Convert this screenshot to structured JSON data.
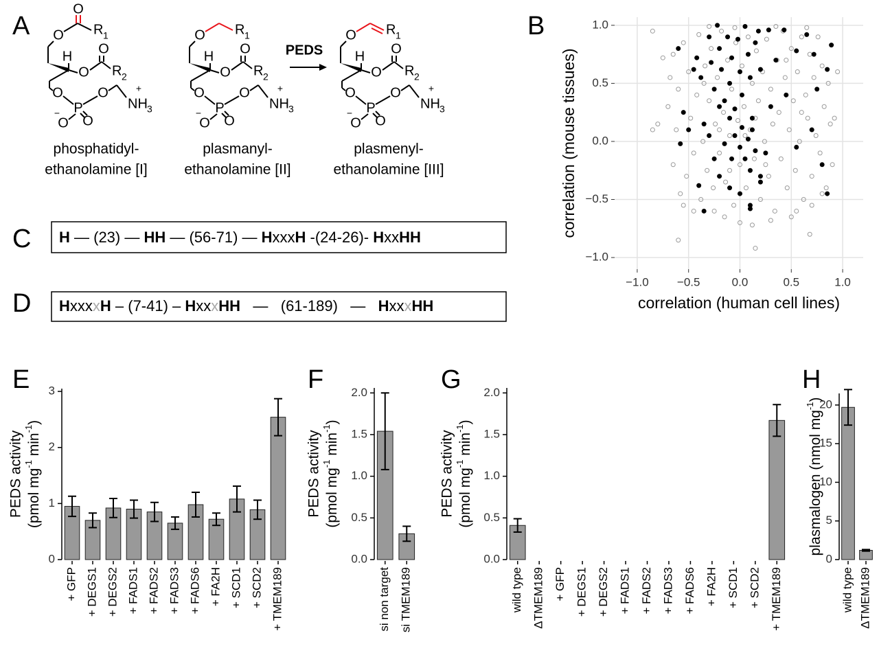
{
  "section_A": {
    "panel": "A",
    "reaction_label": "PEDS",
    "structures": [
      {
        "atoms": [
          "O",
          "O",
          "R",
          "1",
          "H",
          "O",
          "O",
          "R",
          "2",
          "O",
          "P",
          "O",
          "−",
          "O",
          "O",
          "NH",
          "3",
          "+"
        ],
        "caption": [
          "phosphatidyl-",
          "ethanolamine [I]"
        ]
      },
      {
        "atoms": [
          "O",
          "R",
          "1",
          "H",
          "O",
          "O",
          "R",
          "2",
          "O",
          "P",
          "O",
          "−",
          "O",
          "O",
          "NH",
          "3",
          "+"
        ],
        "caption": [
          "plasmanyl-",
          "ethanolamine [II]"
        ]
      },
      {
        "atoms": [
          "O",
          "R",
          "1",
          "H",
          "O",
          "O",
          "R",
          "2",
          "O",
          "P",
          "O",
          "−",
          "O",
          "O",
          "NH",
          "3",
          "+"
        ],
        "caption": [
          "plasmenyl-",
          "ethanolamine [III]"
        ]
      }
    ]
  },
  "section_C": {
    "panel": "C",
    "segments": [
      {
        "text": "H",
        "style": "bold"
      },
      {
        "text": " — (23) — ",
        "style": "normal"
      },
      {
        "text": "HH",
        "style": "bold"
      },
      {
        "text": " — (56-71) — ",
        "style": "normal"
      },
      {
        "text": "H",
        "style": "bold"
      },
      {
        "text": "xxx",
        "style": "normal"
      },
      {
        "text": "H",
        "style": "bold"
      },
      {
        "text": " -(24-26)- ",
        "style": "normal"
      },
      {
        "text": "H",
        "style": "bold"
      },
      {
        "text": "xx",
        "style": "normal"
      },
      {
        "text": "HH",
        "style": "bold"
      }
    ]
  },
  "section_D": {
    "panel": "D",
    "segments": [
      {
        "text": "H",
        "style": "bold"
      },
      {
        "text": "xxx",
        "style": "normal"
      },
      {
        "text": "x",
        "style": "grey"
      },
      {
        "text": "H",
        "style": "bold"
      },
      {
        "text": " – (7-41) – ",
        "style": "normal"
      },
      {
        "text": "H",
        "style": "bold"
      },
      {
        "text": "xx",
        "style": "normal"
      },
      {
        "text": "x",
        "style": "grey"
      },
      {
        "text": "HH",
        "style": "bold"
      },
      {
        "text": "   —   (61-189)   —   ",
        "style": "normal"
      },
      {
        "text": "H",
        "style": "bold"
      },
      {
        "text": "xx",
        "style": "normal"
      },
      {
        "text": "x",
        "style": "grey"
      },
      {
        "text": "HH",
        "style": "bold"
      }
    ]
  },
  "chart_data": [
    {
      "type": "scatter",
      "panel": "B",
      "xlabel": "correlation (human cell lines)",
      "ylabel": "correlation (mouse tissues)",
      "xlim": [
        -1.22,
        1.2
      ],
      "ylim": [
        -1.1,
        1.07
      ],
      "grid": true,
      "xticks": [
        {
          "value": -1,
          "label": "−1.0"
        },
        {
          "value": -0.5,
          "label": "−0.5"
        },
        {
          "value": 0,
          "label": "0.0"
        },
        {
          "value": 0.5,
          "label": "0.5"
        },
        {
          "value": 1,
          "label": "1.0"
        }
      ],
      "yticks": [
        {
          "value": -1,
          "label": "−1.0"
        },
        {
          "value": -0.5,
          "label": "−0.5"
        },
        {
          "value": 0,
          "label": "0.0"
        },
        {
          "value": 0.5,
          "label": "0.5"
        },
        {
          "value": 1,
          "label": "1.0"
        }
      ],
      "series": [
        {
          "color": "#9a9a9a",
          "marker": "open",
          "x": [
            -0.85,
            -0.75,
            -0.7,
            -0.68,
            -0.65,
            -0.62,
            -0.6,
            -0.58,
            -0.55,
            -0.52,
            -0.5,
            -0.48,
            -0.45,
            -0.42,
            -0.4,
            -0.38,
            -0.36,
            -0.34,
            -0.32,
            -0.3,
            -0.28,
            -0.26,
            -0.24,
            -0.22,
            -0.2,
            -0.18,
            -0.16,
            -0.14,
            -0.12,
            -0.1,
            -0.08,
            -0.06,
            -0.04,
            -0.02,
            0.0,
            0.02,
            0.04,
            0.06,
            0.08,
            0.1,
            0.12,
            0.14,
            0.16,
            0.18,
            0.2,
            0.22,
            0.24,
            0.26,
            0.28,
            0.3,
            0.32,
            0.34,
            0.36,
            0.38,
            0.4,
            0.42,
            0.44,
            0.46,
            0.48,
            0.5,
            0.52,
            0.54,
            0.56,
            0.58,
            0.6,
            0.62,
            0.64,
            0.66,
            0.68,
            0.7,
            0.72,
            0.74,
            0.76,
            0.78,
            0.8,
            0.82,
            0.84,
            0.86,
            0.88,
            0.9,
            -0.15,
            0.0,
            0.12,
            -0.25,
            0.3,
            0.55,
            -0.45,
            -0.05,
            0.35,
            -0.3,
            0.65,
            0.5,
            0.7,
            0.8,
            -0.55,
            -0.2,
            0.05,
            -0.1,
            0.15,
            0.25,
            -0.35,
            0.45,
            0.6,
            -0.65,
            -0.8,
            -0.85,
            0.95,
            0.92,
            0.15,
            0.68,
            -0.6
          ],
          "values": [
            0.95,
            0.72,
            0.3,
            0.55,
            -0.2,
            0.1,
            0.45,
            -0.45,
            0.85,
            -0.3,
            0.6,
            0.2,
            -0.1,
            0.4,
            0.92,
            -0.5,
            0.0,
            0.65,
            -0.25,
            0.35,
            0.8,
            -0.4,
            0.15,
            0.55,
            -0.1,
            0.95,
            0.25,
            -0.35,
            0.7,
            0.05,
            0.45,
            -0.55,
            0.85,
            0.18,
            -0.2,
            0.65,
            0.3,
            -0.4,
            0.9,
            0.1,
            0.5,
            -0.15,
            0.78,
            0.35,
            -0.5,
            0.6,
            0.0,
            0.88,
            -0.3,
            0.45,
            0.15,
            -0.6,
            0.7,
            0.25,
            -0.15,
            0.95,
            0.55,
            -0.4,
            0.1,
            0.8,
            0.35,
            -0.25,
            0.6,
            0.0,
            0.9,
            -0.5,
            0.4,
            0.2,
            0.75,
            -0.3,
            0.55,
            0.05,
            0.9,
            -0.1,
            0.65,
            0.3,
            -0.4,
            0.5,
            0.15,
            -0.2,
            -0.65,
            -0.7,
            -0.72,
            -0.6,
            -0.68,
            -0.6,
            -0.6,
            0.98,
            0.99,
            0.99,
            0.98,
            -0.65,
            -0.55,
            -0.45,
            -0.55,
            0.1,
            0.05,
            -0.25,
            0.2,
            -0.2,
            0.5,
            0.7,
            0.25,
            0.75,
            0.15,
            0.1,
            0.6,
            0.2,
            -0.92,
            -0.8,
            -0.85
          ]
        },
        {
          "color": "#000000",
          "marker": "filled",
          "x": [
            -0.45,
            -0.42,
            -0.38,
            -0.3,
            -0.28,
            -0.25,
            -0.22,
            -0.2,
            -0.18,
            -0.15,
            -0.12,
            -0.1,
            -0.08,
            -0.05,
            -0.02,
            0.0,
            0.02,
            0.05,
            0.08,
            0.1,
            0.12,
            0.15,
            0.18,
            0.2,
            0.28,
            0.35,
            0.43,
            0.55,
            0.65,
            0.72,
            0.89,
            0.85,
            0.75,
            -0.6,
            -0.55,
            -0.5,
            -0.35,
            -0.3,
            -0.25,
            -0.2,
            -0.15,
            -0.1,
            -0.08,
            -0.05,
            0.0,
            0.02,
            0.05,
            0.08,
            0.1,
            0.12,
            0.15,
            0.2,
            0.25,
            0.3,
            0.45,
            0.55,
            0.7,
            0.8,
            0.85,
            -0.58,
            -0.4,
            -0.35,
            -0.1,
            0.0,
            0.1,
            0.1,
            0.2,
            -0.2
          ],
          "values": [
            0.62,
            0.72,
            0.55,
            0.9,
            0.68,
            0.45,
            1.0,
            0.8,
            0.62,
            0.35,
            0.9,
            0.5,
            0.72,
            0.28,
            0.88,
            0.6,
            0.4,
            0.99,
            0.75,
            0.55,
            0.2,
            0.85,
            0.95,
            0.62,
            0.96,
            0.7,
            0.96,
            0.78,
            0.92,
            0.75,
            0.83,
            0.62,
            0.45,
            0.8,
            0.25,
            0.1,
            0.15,
            0.05,
            -0.15,
            0.3,
            -0.02,
            0.2,
            -0.15,
            0.05,
            -0.05,
            0.12,
            -0.15,
            0.02,
            -0.25,
            0.1,
            -0.08,
            -0.3,
            -0.1,
            0.3,
            0.4,
            -0.05,
            0.1,
            -0.2,
            -0.45,
            -0.02,
            -0.38,
            -0.6,
            -0.4,
            -0.45,
            -0.55,
            -0.58,
            -0.35,
            -0.3
          ]
        }
      ]
    },
    {
      "type": "bar",
      "panel": "E",
      "ylabel": [
        "PEDS activity",
        [
          "(pmol mg",
          "-1",
          " min",
          "-1",
          ")"
        ]
      ],
      "categories": [
        "+ GFP",
        "+ DEGS1",
        "+ DEGS2",
        "+ FADS1",
        "+ FADS2",
        "+ FADS3",
        "+ FADS6",
        "+ FA2H",
        "+ SCD1",
        "+ SCD2",
        "+ TMEM189"
      ],
      "values": [
        0.95,
        0.7,
        0.92,
        0.9,
        0.85,
        0.65,
        0.98,
        0.72,
        1.08,
        0.89,
        2.54
      ],
      "errors": [
        0.18,
        0.13,
        0.17,
        0.16,
        0.17,
        0.11,
        0.22,
        0.11,
        0.23,
        0.17,
        0.33
      ],
      "color": "#999999",
      "ylim": [
        0,
        3.05
      ],
      "yticks": [
        0,
        1,
        2,
        3
      ]
    },
    {
      "type": "bar",
      "panel": "F",
      "ylabel": [
        "PEDS activity",
        [
          "(pmol mg",
          "-1",
          " min",
          "-1",
          ")"
        ]
      ],
      "categories": [
        "si non target",
        "si TMEM189"
      ],
      "values": [
        1.54,
        0.31
      ],
      "errors": [
        0.46,
        0.09
      ],
      "color": "#999999",
      "ylim": [
        0,
        2.06
      ],
      "yticks": [
        {
          "value": 0,
          "label": "0.0"
        },
        {
          "value": 0.5,
          "label": "0.5"
        },
        {
          "value": 1,
          "label": "1.0"
        },
        {
          "value": 1.5,
          "label": "1.5"
        },
        {
          "value": 2,
          "label": "2.0"
        }
      ]
    },
    {
      "type": "bar",
      "panel": "G",
      "ylabel": [
        "PEDS activity",
        [
          "(pmol mg",
          "-1",
          " min",
          "-1",
          ")"
        ]
      ],
      "categories": [
        "wild type",
        "ΔTMEM189",
        "+ GFP",
        "+ DEGS1",
        "+ DEGS2",
        "+ FADS1",
        "+ FADS2",
        "+ FADS3",
        "+ FADS6",
        "+ FA2H",
        "+ SCD1",
        "+ SCD2",
        "+ TMEM189"
      ],
      "values": [
        0.41,
        0,
        0,
        0,
        0,
        0,
        0,
        0,
        0,
        0,
        0,
        0,
        1.67
      ],
      "errors": [
        0.08,
        null,
        null,
        null,
        null,
        null,
        null,
        null,
        null,
        null,
        null,
        null,
        0.19
      ],
      "color": "#999999",
      "ylim": [
        0,
        2.06
      ],
      "yticks": [
        {
          "value": 0,
          "label": "0.0"
        },
        {
          "value": 0.5,
          "label": "0.5"
        },
        {
          "value": 1,
          "label": "1.0"
        },
        {
          "value": 1.5,
          "label": "1.5"
        },
        {
          "value": 2,
          "label": "2.0"
        }
      ]
    },
    {
      "type": "bar",
      "panel": "H",
      "ylabel": [
        [
          "plasmalogen (nmol mg",
          "-1",
          ")"
        ]
      ],
      "categories": [
        "wild type",
        "ΔTMEM189"
      ],
      "values": [
        19.7,
        1.2
      ],
      "errors": [
        2.3,
        0.1
      ],
      "color": "#999999",
      "ylim": [
        0,
        21.5
      ],
      "yticks": [
        0,
        5,
        10,
        15,
        20
      ]
    }
  ]
}
